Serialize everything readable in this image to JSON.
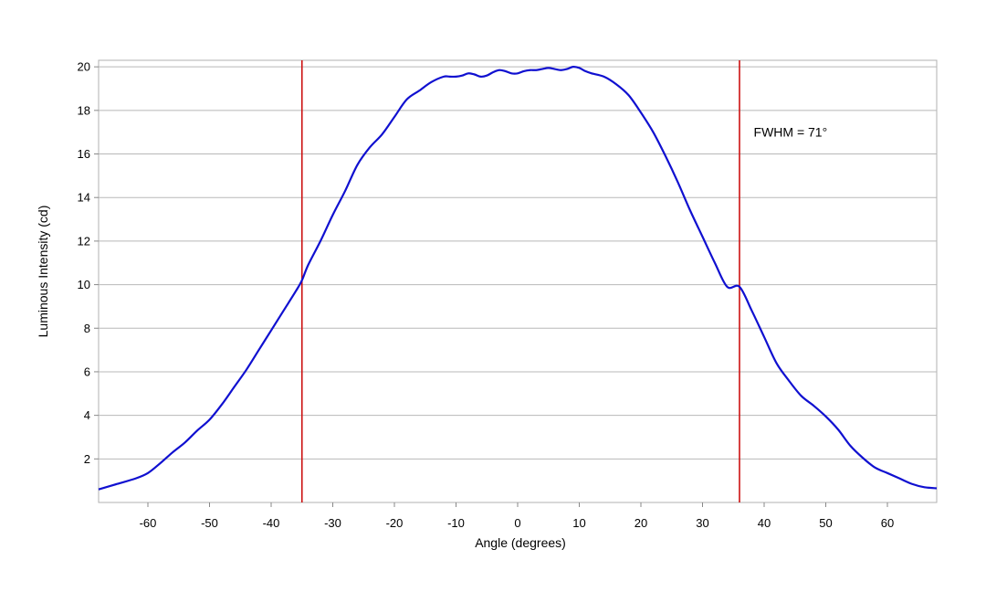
{
  "chart_data": {
    "type": "line",
    "title": "",
    "xlabel": "Angle (degrees)",
    "ylabel": "Luminous Intensity (cd)",
    "xlim": [
      -68,
      68
    ],
    "ylim": [
      0,
      20.3
    ],
    "x_ticks": [
      -60,
      -50,
      -40,
      -30,
      -20,
      -10,
      0,
      10,
      20,
      30,
      40,
      50,
      60
    ],
    "y_ticks": [
      2,
      4,
      6,
      8,
      10,
      12,
      14,
      16,
      18,
      20
    ],
    "grid": "horizontal",
    "series": [
      {
        "color": "#1010d0",
        "x": [
          -68,
          -65,
          -62,
          -60,
          -58,
          -56,
          -54,
          -52,
          -50,
          -48,
          -46,
          -44,
          -42,
          -40,
          -38,
          -36,
          -35,
          -34,
          -32,
          -30,
          -28,
          -26,
          -24,
          -22,
          -20,
          -18,
          -16,
          -14,
          -12,
          -11,
          -10,
          -9,
          -8,
          -7,
          -6,
          -5,
          -4,
          -3,
          -2,
          -1,
          0,
          1,
          2,
          3,
          4,
          5,
          6,
          7,
          8,
          9,
          10,
          11,
          12,
          14,
          16,
          18,
          20,
          22,
          24,
          26,
          28,
          30,
          32,
          34,
          36,
          38,
          40,
          42,
          44,
          46,
          48,
          50,
          52,
          54,
          56,
          58,
          60,
          62,
          64,
          66,
          68
        ],
        "y": [
          0.6,
          0.85,
          1.1,
          1.35,
          1.8,
          2.3,
          2.75,
          3.3,
          3.8,
          4.5,
          5.3,
          6.1,
          7.0,
          7.9,
          8.8,
          9.7,
          10.2,
          10.9,
          12.0,
          13.2,
          14.3,
          15.5,
          16.3,
          16.9,
          17.7,
          18.5,
          18.9,
          19.3,
          19.55,
          19.55,
          19.55,
          19.6,
          19.7,
          19.65,
          19.55,
          19.6,
          19.75,
          19.85,
          19.8,
          19.7,
          19.7,
          19.8,
          19.85,
          19.85,
          19.9,
          19.95,
          19.9,
          19.85,
          19.9,
          20.0,
          19.95,
          19.8,
          19.7,
          19.55,
          19.2,
          18.7,
          17.9,
          17.0,
          15.9,
          14.7,
          13.4,
          12.2,
          11.0,
          9.9,
          9.9,
          8.8,
          7.6,
          6.4,
          5.6,
          4.9,
          4.45,
          3.95,
          3.35,
          2.6,
          2.05,
          1.6,
          1.35,
          1.1,
          0.85,
          0.7,
          0.65
        ]
      }
    ],
    "vlines": [
      {
        "x": -35,
        "color": "#cc1111"
      },
      {
        "x": 36,
        "color": "#cc1111"
      }
    ],
    "annotations": [
      {
        "text": "FWHM = 71°",
        "x": 38.3,
        "y": 16.8
      }
    ]
  }
}
